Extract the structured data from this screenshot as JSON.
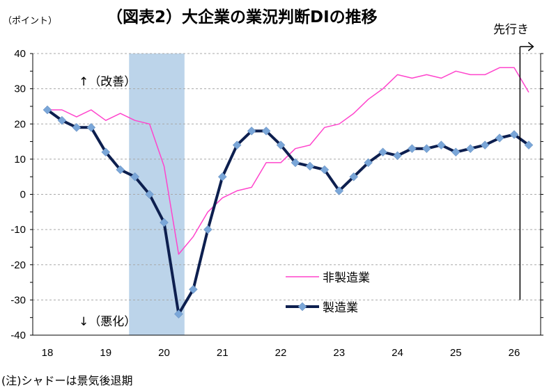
{
  "title": "（図表2）大企業の業況判断DIの推移",
  "unit_label": "（ポイント）",
  "forecast_label": "先行き",
  "annotation_up": "↑（改善）",
  "annotation_down": "↓（悪化）",
  "note": "(注)シャドーは景気後退期",
  "colors": {
    "non_manufacturing": "#ff44cc",
    "manufacturing": "#0d1f4f",
    "manufacturing_marker": "#7aa6d8",
    "shade": "#bcd4ea"
  },
  "chart_data": {
    "type": "line",
    "title": "（図表2）大企業の業況判断DIの推移",
    "ylabel": "（ポイント）",
    "ylim": [
      -40,
      40
    ],
    "yticks": [
      40,
      30,
      20,
      10,
      0,
      -10,
      -20,
      -30,
      -40
    ],
    "xlim": [
      18,
      26.4
    ],
    "xticks": [
      "18",
      "19",
      "20",
      "21",
      "22",
      "23",
      "24",
      "25",
      "26"
    ],
    "grid": true,
    "legend_position": "lower-center",
    "recession_shade": {
      "x_start": 19.4,
      "x_end": 20.35,
      "label": "シャドーは景気後退期"
    },
    "forecast_marker_x": 26.1,
    "x": [
      18.0,
      18.25,
      18.5,
      18.75,
      19.0,
      19.25,
      19.5,
      19.75,
      20.0,
      20.25,
      20.5,
      20.75,
      21.0,
      21.25,
      21.5,
      21.75,
      22.0,
      22.25,
      22.5,
      22.75,
      23.0,
      23.25,
      23.5,
      23.75,
      24.0,
      24.25,
      24.5,
      24.75,
      25.0,
      25.25,
      25.5,
      25.75,
      26.0,
      26.25
    ],
    "series": [
      {
        "name": "非製造業",
        "values": [
          24,
          24,
          22,
          24,
          21,
          23,
          21,
          20,
          8,
          -17,
          -12,
          -5,
          -1,
          1,
          2,
          9,
          9,
          13,
          14,
          19,
          20,
          23,
          27,
          30,
          34,
          33,
          34,
          33,
          35,
          34,
          34,
          36,
          36,
          29
        ]
      },
      {
        "name": "製造業",
        "values": [
          24,
          21,
          19,
          19,
          12,
          7,
          5,
          0,
          -8,
          -34,
          -27,
          -10,
          5,
          14,
          18,
          18,
          14,
          9,
          8,
          7,
          1,
          5,
          9,
          12,
          11,
          13,
          13,
          14,
          12,
          13,
          14,
          16,
          17,
          14
        ]
      }
    ]
  }
}
